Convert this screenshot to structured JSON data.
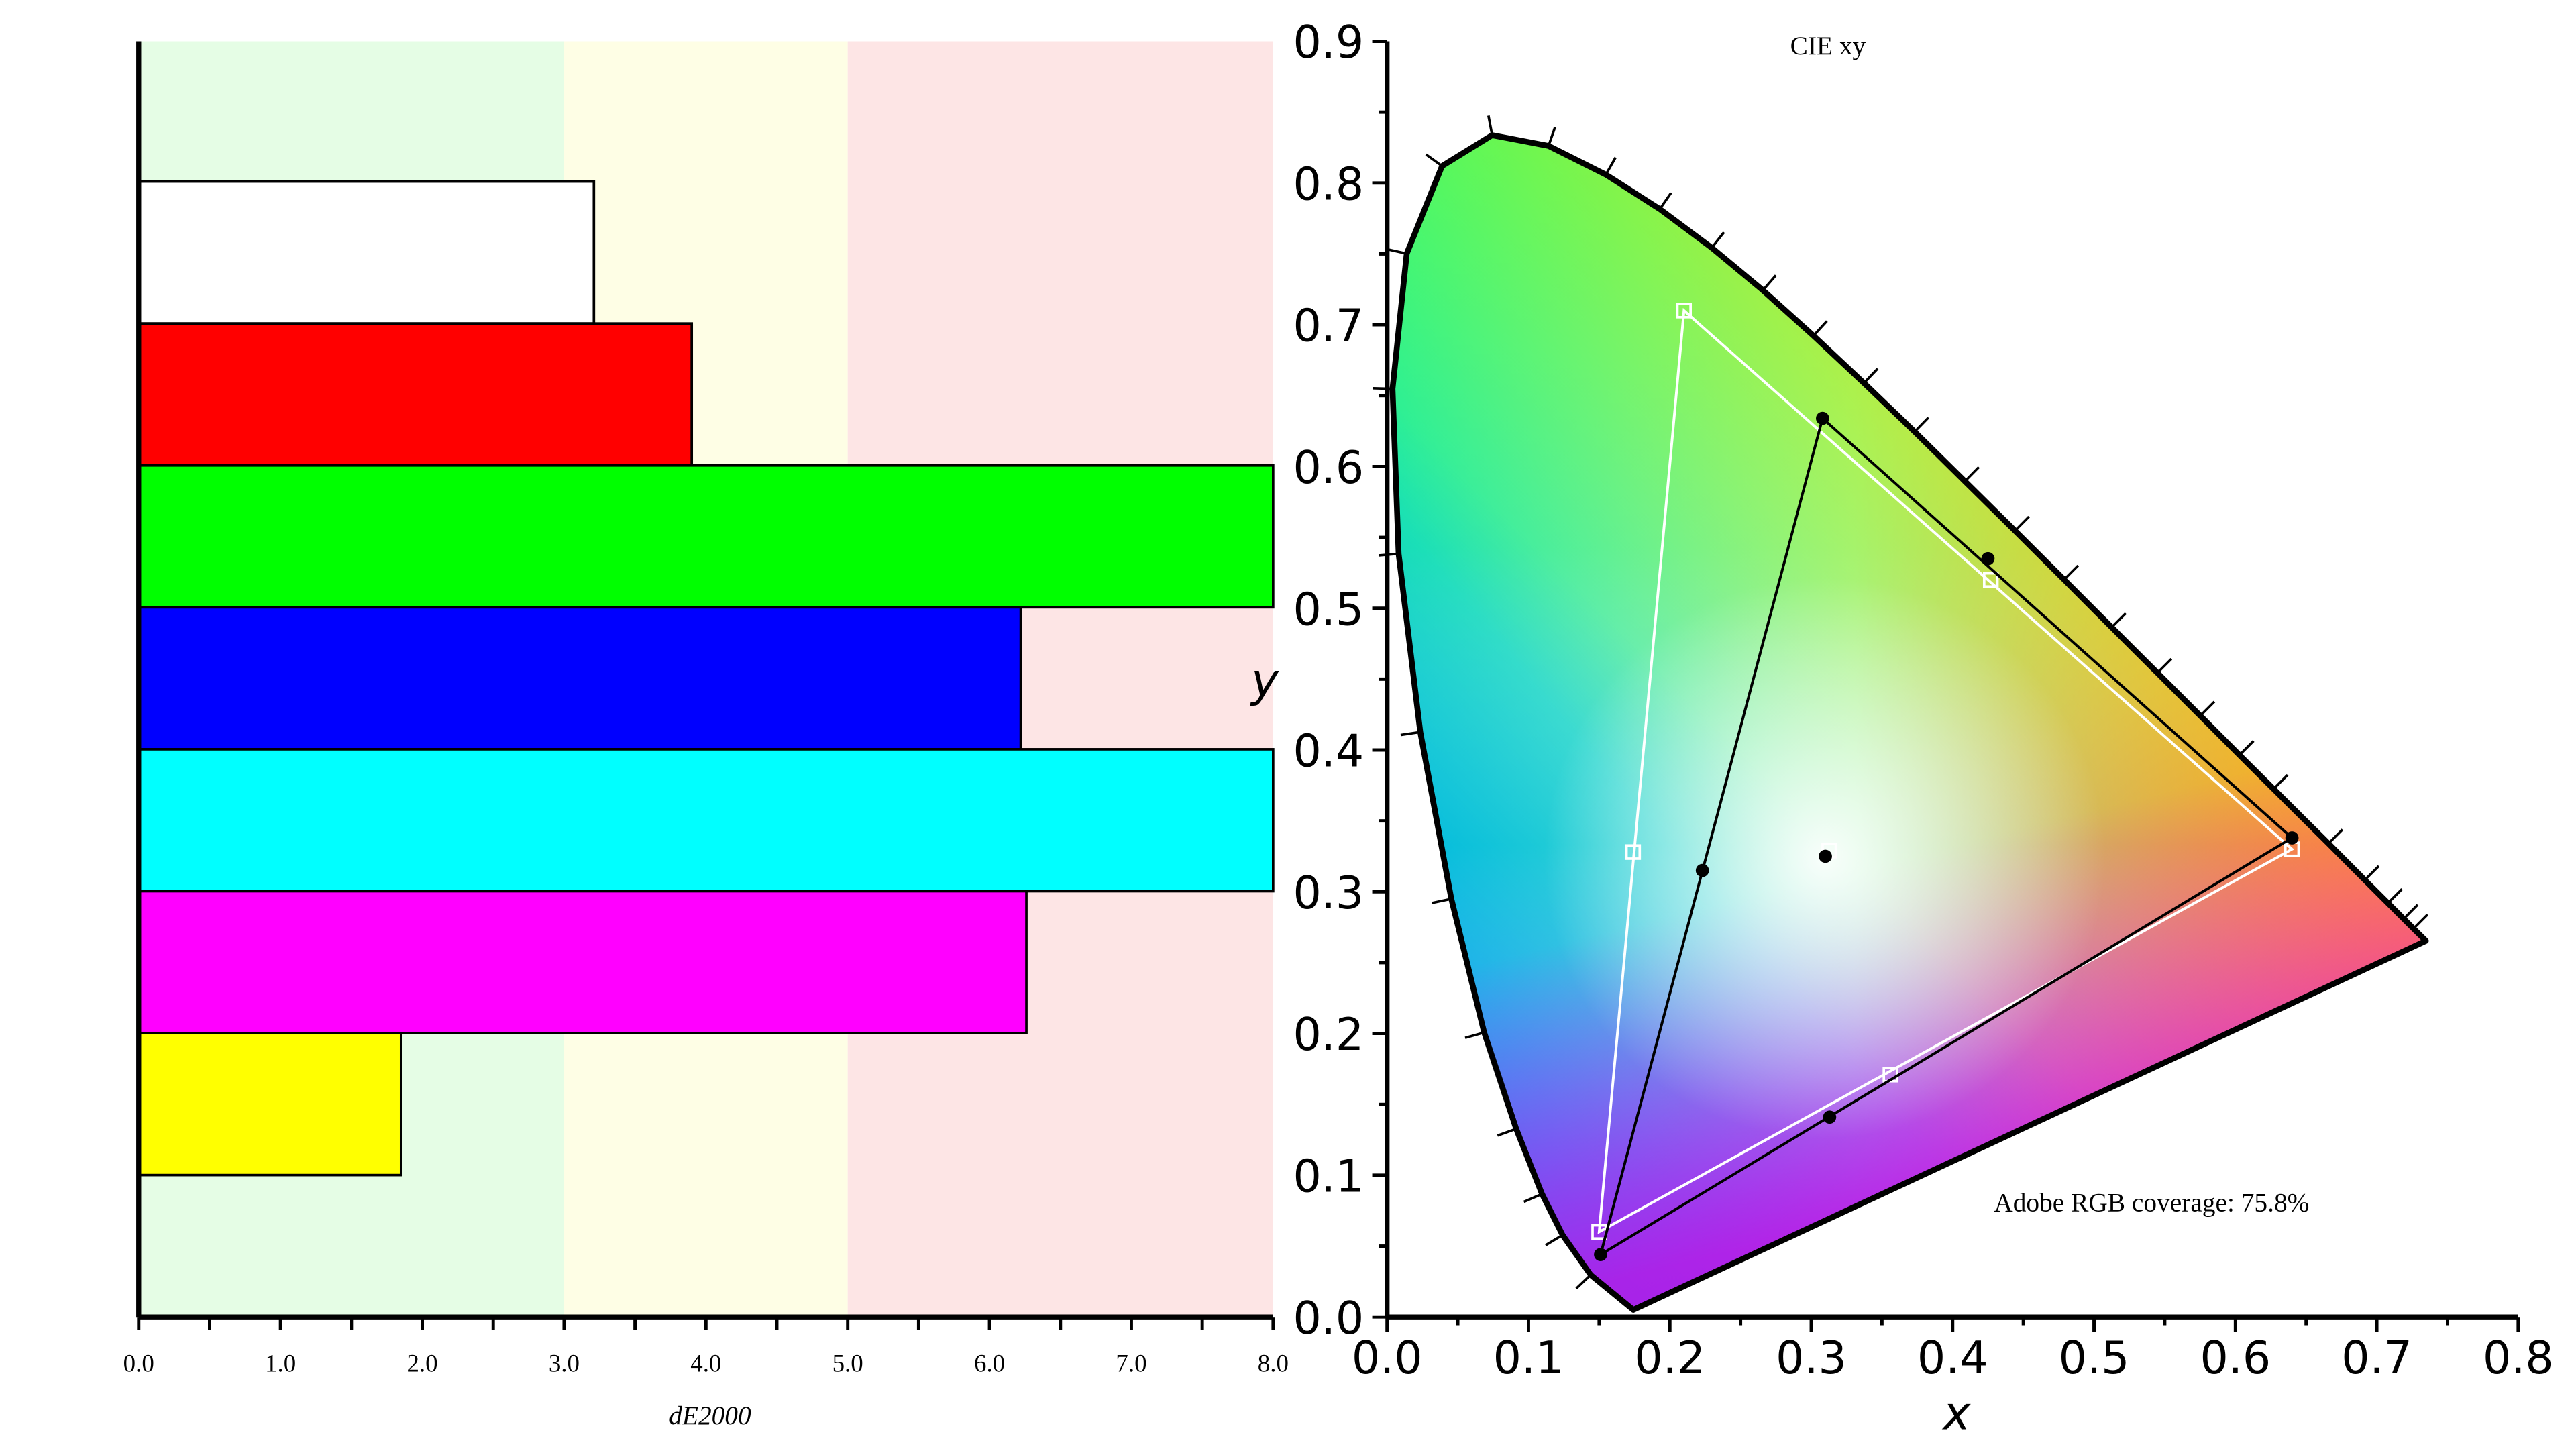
{
  "chart_data": [
    {
      "type": "bar",
      "orientation": "horizontal",
      "title": "",
      "xlabel": "dE2000",
      "ylabel": "",
      "xlim": [
        0,
        8
      ],
      "x_ticks": [
        "0.0",
        "1.0",
        "2.0",
        "3.0",
        "4.0",
        "5.0",
        "6.0",
        "7.0",
        "8.0"
      ],
      "bands": [
        {
          "from": 0,
          "to": 3,
          "color": "#e5fde5"
        },
        {
          "from": 3,
          "to": 5,
          "color": "#fefee5"
        },
        {
          "from": 5,
          "to": 8,
          "color": "#fde5e5"
        }
      ],
      "categories": [
        "White",
        "Red",
        "Green",
        "Blue",
        "Cyan",
        "Magenta",
        "Yellow"
      ],
      "values": [
        3.21,
        3.9,
        8.0,
        6.22,
        8.0,
        6.26,
        1.85
      ],
      "colors": [
        "#ffffff",
        "#ff0000",
        "#00ff00",
        "#0000ff",
        "#00ffff",
        "#ff00ff",
        "#ffff00"
      ]
    },
    {
      "type": "scatter",
      "title": "CIE xy",
      "xlabel": "x",
      "ylabel": "y",
      "xlim": [
        0,
        0.8
      ],
      "ylim": [
        0,
        0.9
      ],
      "x_ticks": [
        "0.0",
        "0.1",
        "0.2",
        "0.3",
        "0.4",
        "0.5",
        "0.6",
        "0.7",
        "0.8"
      ],
      "y_ticks": [
        "0.0",
        "0.1",
        "0.2",
        "0.3",
        "0.4",
        "0.5",
        "0.6",
        "0.7",
        "0.8",
        "0.9"
      ],
      "annotation": "Adobe RGB coverage: 75.8%",
      "measured_gamut": {
        "primaries": [
          [
            0.64,
            0.338
          ],
          [
            0.308,
            0.634
          ],
          [
            0.151,
            0.044
          ]
        ],
        "secondaries": [
          [
            0.425,
            0.535
          ],
          [
            0.223,
            0.315
          ],
          [
            0.313,
            0.141
          ]
        ],
        "white": [
          0.31,
          0.325
        ]
      },
      "reference_gamut": {
        "primaries": [
          [
            0.64,
            0.33
          ],
          [
            0.21,
            0.71
          ],
          [
            0.15,
            0.06
          ]
        ],
        "secondaries": [
          [
            0.427,
            0.52
          ],
          [
            0.174,
            0.328
          ],
          [
            0.356,
            0.171
          ]
        ],
        "white": [
          0.3127,
          0.329
        ]
      },
      "spectral_locus": [
        [
          0.1741,
          0.005
        ],
        [
          0.144,
          0.0297
        ],
        [
          0.1241,
          0.0578
        ],
        [
          0.1096,
          0.0868
        ],
        [
          0.0913,
          0.1327
        ],
        [
          0.0687,
          0.2007
        ],
        [
          0.0454,
          0.295
        ],
        [
          0.0235,
          0.4127
        ],
        [
          0.0082,
          0.5384
        ],
        [
          0.0039,
          0.6548
        ],
        [
          0.0139,
          0.7502
        ],
        [
          0.0389,
          0.812
        ],
        [
          0.0743,
          0.8338
        ],
        [
          0.1142,
          0.8262
        ],
        [
          0.1547,
          0.8059
        ],
        [
          0.1929,
          0.7816
        ],
        [
          0.2296,
          0.7543
        ],
        [
          0.2658,
          0.7243
        ],
        [
          0.3016,
          0.6923
        ],
        [
          0.3373,
          0.6589
        ],
        [
          0.3731,
          0.6245
        ],
        [
          0.4087,
          0.5896
        ],
        [
          0.4441,
          0.5547
        ],
        [
          0.4788,
          0.5202
        ],
        [
          0.5125,
          0.4866
        ],
        [
          0.5448,
          0.4544
        ],
        [
          0.5752,
          0.4242
        ],
        [
          0.6029,
          0.3965
        ],
        [
          0.627,
          0.3725
        ],
        [
          0.6658,
          0.334
        ],
        [
          0.6915,
          0.3083
        ],
        [
          0.7079,
          0.292
        ],
        [
          0.719,
          0.2809
        ],
        [
          0.726,
          0.274
        ],
        [
          0.7347,
          0.2653
        ]
      ]
    }
  ]
}
